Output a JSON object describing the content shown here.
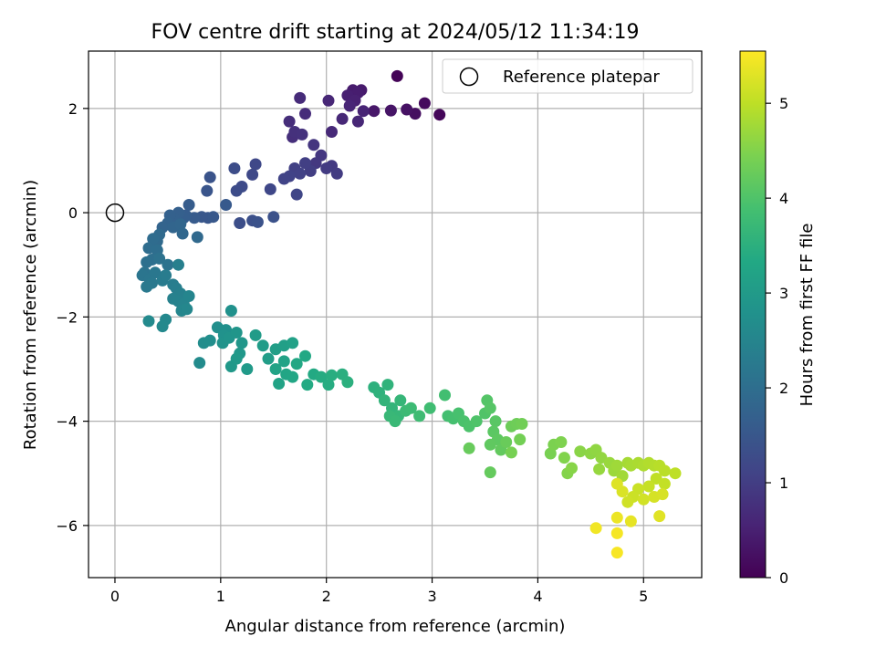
{
  "chart_data": {
    "type": "scatter",
    "title": "FOV centre drift starting at 2024/05/12 11:34:19",
    "xlabel": "Angular distance from reference (arcmin)",
    "ylabel": "Rotation from reference (arcmin)",
    "xlim": [
      -0.25,
      5.55
    ],
    "ylim": [
      -7.0,
      3.1
    ],
    "xticks": [
      0,
      1,
      2,
      3,
      4,
      5
    ],
    "yticks": [
      -6,
      -4,
      -2,
      0,
      2
    ],
    "xtick_labels": [
      "0",
      "1",
      "2",
      "3",
      "4",
      "5"
    ],
    "ytick_labels": [
      "−6",
      "−4",
      "−2",
      "0",
      "2"
    ],
    "grid": true,
    "legend": {
      "position": "top-right",
      "entries": [
        {
          "label": "Reference platepar",
          "marker": "open-circle",
          "color": "#000000"
        }
      ]
    },
    "colorbar": {
      "label": "Hours from first FF file",
      "colormap": "viridis",
      "range": [
        0,
        5.55
      ],
      "ticks": [
        0,
        1,
        2,
        3,
        4,
        5
      ],
      "tick_labels": [
        "0",
        "1",
        "2",
        "3",
        "4",
        "5"
      ]
    },
    "reference_point": {
      "x": 0,
      "y": 0
    },
    "series": [
      {
        "points": [
          [
            2.67,
            2.62,
            0.05
          ],
          [
            3.07,
            1.88,
            0.1
          ],
          [
            2.93,
            2.1,
            0.15
          ],
          [
            2.84,
            1.9,
            0.2
          ],
          [
            2.76,
            1.98,
            0.25
          ],
          [
            2.61,
            1.96,
            0.3
          ],
          [
            2.45,
            1.95,
            0.35
          ],
          [
            2.33,
            2.35,
            0.4
          ],
          [
            2.25,
            2.35,
            0.42
          ],
          [
            2.3,
            2.3,
            0.45
          ],
          [
            2.2,
            2.25,
            0.48
          ],
          [
            2.27,
            2.15,
            0.5
          ],
          [
            2.35,
            1.95,
            0.55
          ],
          [
            2.22,
            2.05,
            0.58
          ],
          [
            2.3,
            1.75,
            0.6
          ],
          [
            2.15,
            1.8,
            0.62
          ],
          [
            2.02,
            2.15,
            0.6
          ],
          [
            2.05,
            1.55,
            0.65
          ],
          [
            1.75,
            2.2,
            0.68
          ],
          [
            1.8,
            1.9,
            0.7
          ],
          [
            1.65,
            1.75,
            0.72
          ],
          [
            1.68,
            1.45,
            0.75
          ],
          [
            1.7,
            1.55,
            0.78
          ],
          [
            1.77,
            1.5,
            0.8
          ],
          [
            1.88,
            1.3,
            0.85
          ],
          [
            1.95,
            1.1,
            0.88
          ],
          [
            1.9,
            0.95,
            0.9
          ],
          [
            2.05,
            0.9,
            0.92
          ],
          [
            2.0,
            0.85,
            0.95
          ],
          [
            2.1,
            0.75,
            0.97
          ],
          [
            1.85,
            0.8,
            1.0
          ],
          [
            1.8,
            0.95,
            1.02
          ],
          [
            1.7,
            0.85,
            1.05
          ],
          [
            1.75,
            0.75,
            1.07
          ],
          [
            1.65,
            0.7,
            1.1
          ],
          [
            1.6,
            0.65,
            1.12
          ],
          [
            1.72,
            0.35,
            1.15
          ],
          [
            1.47,
            0.45,
            1.18
          ],
          [
            1.33,
            0.93,
            1.2
          ],
          [
            1.3,
            0.73,
            1.22
          ],
          [
            1.2,
            0.5,
            1.25
          ],
          [
            1.15,
            0.42,
            1.28
          ],
          [
            1.13,
            0.85,
            1.3
          ],
          [
            1.18,
            -0.2,
            1.32
          ],
          [
            1.3,
            -0.15,
            1.35
          ],
          [
            1.5,
            -0.08,
            1.38
          ],
          [
            1.35,
            -0.18,
            1.4
          ],
          [
            0.9,
            0.68,
            1.42
          ],
          [
            0.87,
            0.42,
            1.45
          ],
          [
            0.88,
            -0.1,
            1.48
          ],
          [
            0.82,
            -0.08,
            1.5
          ],
          [
            0.93,
            -0.08,
            1.52
          ],
          [
            1.05,
            0.15,
            1.55
          ],
          [
            0.75,
            -0.1,
            1.58
          ],
          [
            0.7,
            0.15,
            1.6
          ],
          [
            0.67,
            -0.05,
            1.62
          ],
          [
            0.65,
            -0.1,
            1.65
          ],
          [
            0.6,
            0.0,
            1.68
          ],
          [
            0.55,
            -0.1,
            1.7
          ],
          [
            0.52,
            -0.05,
            1.72
          ],
          [
            0.5,
            -0.2,
            1.75
          ],
          [
            0.45,
            -0.28,
            1.78
          ],
          [
            0.55,
            -0.28,
            1.8
          ],
          [
            0.62,
            -0.22,
            1.82
          ],
          [
            0.64,
            -0.4,
            1.85
          ],
          [
            0.78,
            -0.47,
            1.88
          ],
          [
            0.42,
            -0.42,
            1.9
          ],
          [
            0.4,
            -0.55,
            1.92
          ],
          [
            0.36,
            -0.5,
            1.95
          ],
          [
            0.32,
            -0.68,
            1.98
          ],
          [
            0.4,
            -0.72,
            2.0
          ],
          [
            0.35,
            -0.9,
            2.02
          ],
          [
            0.3,
            -0.95,
            2.05
          ],
          [
            0.42,
            -0.88,
            2.08
          ],
          [
            0.5,
            -1.0,
            2.1
          ],
          [
            0.28,
            -1.15,
            2.12
          ],
          [
            0.26,
            -1.2,
            2.15
          ],
          [
            0.33,
            -1.28,
            2.18
          ],
          [
            0.38,
            -1.15,
            2.2
          ],
          [
            0.35,
            -1.35,
            2.22
          ],
          [
            0.3,
            -1.42,
            2.25
          ],
          [
            0.45,
            -1.3,
            2.28
          ],
          [
            0.48,
            -1.2,
            2.3
          ],
          [
            0.55,
            -1.38,
            2.32
          ],
          [
            0.58,
            -1.45,
            2.35
          ],
          [
            0.6,
            -1.0,
            2.38
          ],
          [
            0.62,
            -1.55,
            2.4
          ],
          [
            0.55,
            -1.65,
            2.42
          ],
          [
            0.6,
            -1.7,
            2.45
          ],
          [
            0.65,
            -1.75,
            2.48
          ],
          [
            0.7,
            -1.6,
            2.5
          ],
          [
            0.63,
            -1.88,
            2.52
          ],
          [
            0.68,
            -1.85,
            2.55
          ],
          [
            0.48,
            -2.05,
            2.58
          ],
          [
            0.45,
            -2.18,
            2.6
          ],
          [
            0.32,
            -2.08,
            2.62
          ],
          [
            0.8,
            -2.88,
            2.65
          ],
          [
            0.84,
            -2.5,
            2.68
          ],
          [
            0.9,
            -2.45,
            2.7
          ],
          [
            0.97,
            -2.2,
            2.72
          ],
          [
            1.05,
            -2.25,
            2.75
          ],
          [
            1.1,
            -1.88,
            2.78
          ],
          [
            1.03,
            -2.35,
            2.8
          ],
          [
            1.02,
            -2.5,
            2.82
          ],
          [
            1.08,
            -2.4,
            2.85
          ],
          [
            1.15,
            -2.3,
            2.88
          ],
          [
            1.2,
            -2.5,
            2.9
          ],
          [
            1.18,
            -2.7,
            2.92
          ],
          [
            1.1,
            -2.95,
            2.95
          ],
          [
            1.15,
            -2.8,
            2.98
          ],
          [
            1.25,
            -3.0,
            3.0
          ],
          [
            1.33,
            -2.35,
            3.02
          ],
          [
            1.4,
            -2.55,
            3.05
          ],
          [
            1.45,
            -2.8,
            3.07
          ],
          [
            1.52,
            -2.62,
            3.1
          ],
          [
            1.6,
            -2.55,
            3.12
          ],
          [
            1.68,
            -2.5,
            3.15
          ],
          [
            1.6,
            -2.85,
            3.18
          ],
          [
            1.52,
            -3.0,
            3.2
          ],
          [
            1.55,
            -3.28,
            3.22
          ],
          [
            1.62,
            -3.1,
            3.25
          ],
          [
            1.68,
            -3.15,
            3.27
          ],
          [
            1.72,
            -2.9,
            3.3
          ],
          [
            1.8,
            -2.75,
            3.32
          ],
          [
            1.88,
            -3.1,
            3.35
          ],
          [
            1.82,
            -3.3,
            3.37
          ],
          [
            1.95,
            -3.15,
            3.4
          ],
          [
            2.02,
            -3.3,
            3.42
          ],
          [
            2.05,
            -3.12,
            3.45
          ],
          [
            2.15,
            -3.1,
            3.47
          ],
          [
            2.2,
            -3.25,
            3.5
          ],
          [
            2.45,
            -3.35,
            3.52
          ],
          [
            2.5,
            -3.45,
            3.55
          ],
          [
            2.58,
            -3.3,
            3.57
          ],
          [
            2.55,
            -3.6,
            3.6
          ],
          [
            2.62,
            -3.75,
            3.62
          ],
          [
            2.7,
            -3.6,
            3.65
          ],
          [
            2.68,
            -3.9,
            3.67
          ],
          [
            2.6,
            -3.9,
            3.7
          ],
          [
            2.65,
            -4.0,
            3.72
          ],
          [
            2.75,
            -3.8,
            3.75
          ],
          [
            2.8,
            -3.75,
            3.77
          ],
          [
            2.88,
            -3.9,
            3.8
          ],
          [
            2.98,
            -3.75,
            3.82
          ],
          [
            3.12,
            -3.5,
            3.85
          ],
          [
            3.15,
            -3.9,
            3.87
          ],
          [
            3.2,
            -3.95,
            3.9
          ],
          [
            3.25,
            -3.85,
            3.92
          ],
          [
            3.3,
            -4.0,
            3.95
          ],
          [
            3.35,
            -4.1,
            3.97
          ],
          [
            3.42,
            -4.0,
            4.0
          ],
          [
            3.5,
            -3.85,
            4.02
          ],
          [
            3.52,
            -3.6,
            4.05
          ],
          [
            3.55,
            -3.75,
            4.07
          ],
          [
            3.6,
            -4.0,
            4.1
          ],
          [
            3.58,
            -4.2,
            4.12
          ],
          [
            3.62,
            -4.35,
            4.15
          ],
          [
            3.55,
            -4.45,
            4.17
          ],
          [
            3.65,
            -4.55,
            4.2
          ],
          [
            3.55,
            -4.98,
            4.22
          ],
          [
            3.35,
            -4.52,
            4.25
          ],
          [
            3.7,
            -4.4,
            4.27
          ],
          [
            3.75,
            -4.1,
            4.3
          ],
          [
            3.8,
            -4.05,
            4.32
          ],
          [
            3.85,
            -4.05,
            4.35
          ],
          [
            3.83,
            -4.35,
            4.37
          ],
          [
            3.75,
            -4.6,
            4.4
          ],
          [
            4.12,
            -4.62,
            4.42
          ],
          [
            4.15,
            -4.45,
            4.45
          ],
          [
            4.22,
            -4.4,
            4.47
          ],
          [
            4.25,
            -4.7,
            4.5
          ],
          [
            4.28,
            -5.0,
            4.52
          ],
          [
            4.32,
            -4.9,
            4.55
          ],
          [
            4.4,
            -4.58,
            4.57
          ],
          [
            4.5,
            -4.62,
            4.6
          ],
          [
            4.55,
            -4.55,
            4.62
          ],
          [
            4.6,
            -4.7,
            4.65
          ],
          [
            4.58,
            -4.92,
            4.67
          ],
          [
            4.68,
            -4.8,
            4.7
          ],
          [
            4.72,
            -4.95,
            4.72
          ],
          [
            4.75,
            -4.85,
            4.75
          ],
          [
            4.8,
            -5.05,
            4.77
          ],
          [
            4.85,
            -4.8,
            4.8
          ],
          [
            4.88,
            -4.85,
            4.82
          ],
          [
            4.95,
            -4.8,
            4.85
          ],
          [
            5.0,
            -4.85,
            4.87
          ],
          [
            5.05,
            -4.8,
            4.9
          ],
          [
            5.1,
            -4.85,
            4.92
          ],
          [
            5.15,
            -4.85,
            4.95
          ],
          [
            5.2,
            -4.95,
            4.97
          ],
          [
            5.3,
            -5.0,
            5.0
          ],
          [
            5.12,
            -5.1,
            5.02
          ],
          [
            5.2,
            -5.2,
            5.05
          ],
          [
            5.05,
            -5.25,
            5.07
          ],
          [
            4.95,
            -5.3,
            5.1
          ],
          [
            4.9,
            -5.45,
            5.12
          ],
          [
            4.85,
            -5.55,
            5.15
          ],
          [
            5.0,
            -5.5,
            5.17
          ],
          [
            5.1,
            -5.45,
            5.2
          ],
          [
            5.18,
            -5.4,
            5.22
          ],
          [
            4.8,
            -5.35,
            5.25
          ],
          [
            4.75,
            -5.2,
            5.27
          ],
          [
            5.15,
            -5.82,
            5.3
          ],
          [
            4.88,
            -5.92,
            5.35
          ],
          [
            4.75,
            -5.85,
            5.4
          ],
          [
            4.55,
            -6.05,
            5.45
          ],
          [
            4.75,
            -6.15,
            5.48
          ],
          [
            4.75,
            -6.52,
            5.5
          ]
        ]
      }
    ]
  }
}
